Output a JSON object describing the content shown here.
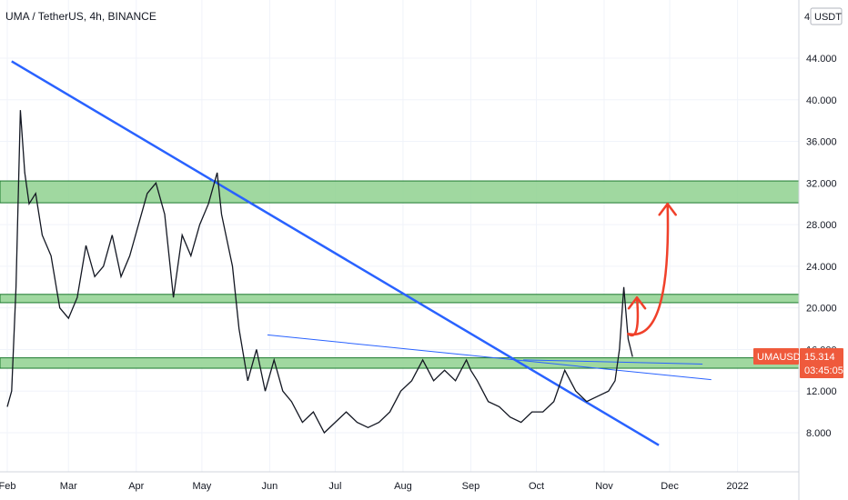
{
  "header": {
    "title": "UMA / TetherUS, 4h, BINANCE",
    "unit_label": "USDT",
    "unit_prefix": "4"
  },
  "price_badge": {
    "symbol": "UMAUSDT",
    "price": "15.314",
    "countdown": "03:45:05",
    "color": "#ef5a3c"
  },
  "colors": {
    "candles": "#131722",
    "trendline": "#2962ff",
    "zone_fill": "#8fd18f",
    "zone_border": "#1b7a2e",
    "arrow": "#f0402a"
  },
  "chart_data": {
    "type": "line",
    "title": "UMA / TetherUS, 4h, BINANCE",
    "xlabel": "",
    "ylabel": "",
    "ylim": [
      4,
      48
    ],
    "y_ticks": [
      "44.000",
      "40.000",
      "36.000",
      "32.000",
      "28.000",
      "24.000",
      "20.000",
      "16.000",
      "12.000",
      "8.000"
    ],
    "y_tick_values": [
      44,
      40,
      36,
      32,
      28,
      24,
      20,
      16,
      12,
      8
    ],
    "x_ticks": [
      "Feb",
      "Mar",
      "Apr",
      "May",
      "Jun",
      "Jul",
      "Aug",
      "Sep",
      "Oct",
      "Nov",
      "Dec",
      "2022"
    ],
    "x_tick_days": [
      0,
      28,
      59,
      89,
      120,
      150,
      181,
      212,
      242,
      273,
      303,
      334
    ],
    "xlim_days": [
      0,
      355
    ],
    "series": [
      {
        "x": [
          0,
          2,
          4,
          6,
          8,
          10,
          13,
          16,
          20,
          24,
          28,
          32,
          36,
          40,
          44,
          48,
          52,
          56,
          60,
          64,
          68,
          72,
          76,
          80,
          84,
          88,
          92,
          96,
          98,
          100,
          103,
          106,
          110,
          114,
          118,
          122,
          126,
          130,
          135,
          140,
          145,
          150,
          155,
          160,
          165,
          170,
          175,
          180,
          185,
          190,
          195,
          200,
          205,
          210,
          212,
          215,
          220,
          225,
          230,
          235,
          240,
          245,
          250,
          255,
          260,
          265,
          270,
          275,
          278,
          280,
          282,
          284,
          286
        ],
        "values": [
          10.5,
          12,
          22,
          39,
          33,
          30,
          31,
          27,
          25,
          20,
          19,
          21,
          26,
          23,
          24,
          27,
          23,
          25,
          28,
          31,
          32,
          29,
          21,
          27,
          25,
          28,
          30,
          33,
          29,
          27,
          24,
          18,
          13,
          16,
          12,
          15,
          12,
          11,
          9,
          10,
          8,
          9,
          10,
          9,
          8.5,
          9,
          10,
          12,
          13,
          15,
          13,
          14,
          13,
          15,
          14,
          13,
          11,
          10.5,
          9.5,
          9,
          10,
          10,
          11,
          14,
          12,
          11,
          11.5,
          12,
          13,
          16,
          22,
          17,
          15.3
        ]
      }
    ],
    "annotations": {
      "zones": [
        {
          "low": 30.1,
          "high": 32.2
        },
        {
          "low": 20.5,
          "high": 21.3
        },
        {
          "low": 14.2,
          "high": 15.2
        }
      ],
      "trendlines": [
        {
          "from": [
            2,
            43.7
          ],
          "to": [
            298,
            6.8
          ],
          "weight": "thick"
        },
        {
          "from": [
            119,
            17.4
          ],
          "to": [
            322,
            13.1
          ],
          "weight": "thin"
        },
        {
          "from": [
            236,
            15.0
          ],
          "to": [
            318,
            14.6
          ],
          "weight": "thin"
        }
      ],
      "arrows": [
        {
          "from": [
            284,
            17.5
          ],
          "to": [
            302,
            30.0
          ]
        },
        {
          "from": [
            284,
            17.5
          ],
          "to": [
            288,
            21.0
          ]
        }
      ]
    }
  }
}
